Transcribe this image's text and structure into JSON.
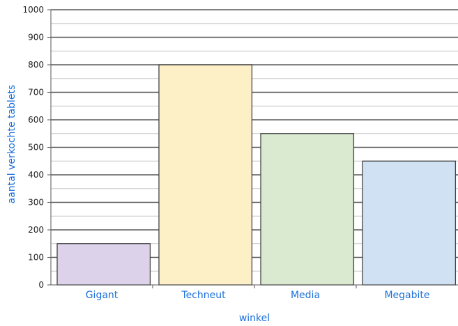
{
  "chart_data": {
    "type": "bar",
    "title": "",
    "xlabel": "winkel",
    "ylabel": "aantal verkochte tablets",
    "categories": [
      "Gigant",
      "Techneut",
      "Media",
      "Megabite"
    ],
    "values": [
      150,
      800,
      550,
      450
    ],
    "colors": [
      "#dcd3eb",
      "#fdf0c6",
      "#d9ead0",
      "#d0e1f3"
    ],
    "ylim": [
      0,
      1000
    ],
    "yticks": [
      0,
      100,
      200,
      300,
      400,
      500,
      600,
      700,
      800,
      900,
      1000
    ],
    "grid": true,
    "legend": "none"
  }
}
